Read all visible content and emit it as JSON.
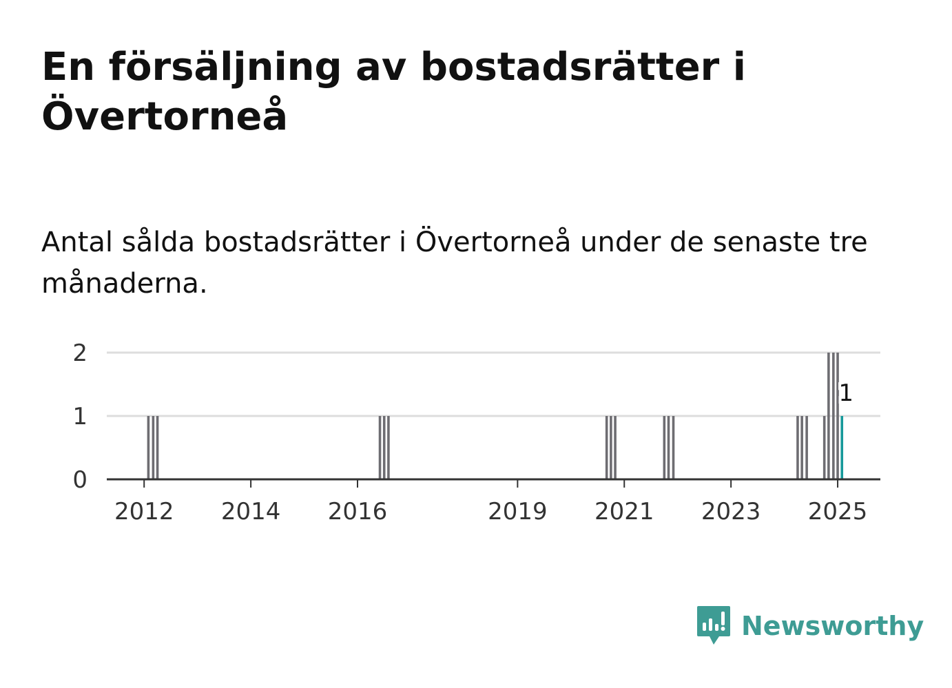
{
  "title": "En försäljning av bostadsrätter i Övertorneå",
  "subtitle": "Antal sålda bostadsrätter i Övertorneå under de senaste tre månaderna.",
  "brand": {
    "name": "Newsworthy",
    "color": "#3e9c94",
    "icon": "newsworthy-logo-icon"
  },
  "colors": {
    "bar": "#6e6d72",
    "highlight": "#16999a",
    "grid": "#dddddd",
    "axis": "#333333"
  },
  "chart_data": {
    "type": "bar",
    "title": "",
    "xlabel": "",
    "ylabel": "",
    "ylim": [
      0,
      2
    ],
    "yticks": [
      0,
      1,
      2
    ],
    "xticks": [
      2012,
      2014,
      2016,
      2019,
      2021,
      2023,
      2025
    ],
    "xlim": [
      2011.3,
      2025.8
    ],
    "grid": true,
    "series": [
      {
        "values": [
          {
            "x": 2012.08,
            "value": 1
          },
          {
            "x": 2012.17,
            "value": 1
          },
          {
            "x": 2012.25,
            "value": 1
          },
          {
            "x": 2016.42,
            "value": 1
          },
          {
            "x": 2016.5,
            "value": 1
          },
          {
            "x": 2016.58,
            "value": 1
          },
          {
            "x": 2020.67,
            "value": 1
          },
          {
            "x": 2020.75,
            "value": 1
          },
          {
            "x": 2020.83,
            "value": 1
          },
          {
            "x": 2021.75,
            "value": 1
          },
          {
            "x": 2021.83,
            "value": 1
          },
          {
            "x": 2021.92,
            "value": 1
          },
          {
            "x": 2024.25,
            "value": 1
          },
          {
            "x": 2024.33,
            "value": 1
          },
          {
            "x": 2024.42,
            "value": 1
          },
          {
            "x": 2024.75,
            "value": 1
          },
          {
            "x": 2024.83,
            "value": 2
          },
          {
            "x": 2024.92,
            "value": 2
          },
          {
            "x": 2025.0,
            "value": 2
          }
        ]
      }
    ],
    "highlight": {
      "x": 2025.08,
      "value": 1,
      "label": "1"
    }
  }
}
